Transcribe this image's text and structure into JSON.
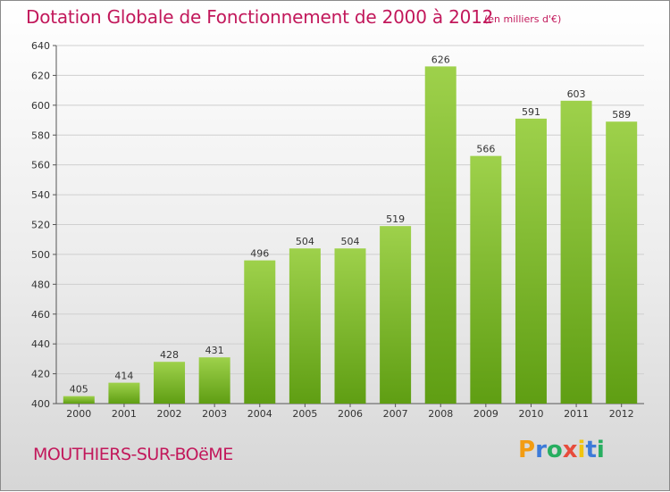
{
  "title": "Dotation Globale de Fonctionnement de 2000 à 2012",
  "unit_note": "(en milliers d'€)",
  "commune": "MOUTHIERS-SUR-BOëME",
  "brand": {
    "letters": [
      "P",
      "r",
      "o",
      "x",
      "i",
      "t",
      "i"
    ],
    "colors": [
      "#f39c12",
      "#3d7bd9",
      "#27ae60",
      "#e74c3c",
      "#f1c40f",
      "#3d7bd9",
      "#27ae60"
    ]
  },
  "colors": {
    "bar_light": "#9ed14b",
    "bar_dark": "#5f9e13",
    "accent": "#c2185b",
    "grid": "#cfcfcf"
  },
  "chart_data": {
    "type": "bar",
    "categories": [
      "2000",
      "2001",
      "2002",
      "2003",
      "2004",
      "2005",
      "2006",
      "2007",
      "2008",
      "2009",
      "2010",
      "2011",
      "2012"
    ],
    "values": [
      405,
      414,
      428,
      431,
      496,
      504,
      504,
      519,
      626,
      566,
      591,
      603,
      589
    ],
    "title": "Dotation Globale de Fonctionnement de 2000 à 2012",
    "xlabel": "",
    "ylabel": "",
    "ylim": [
      400,
      640
    ],
    "yticks": [
      400,
      420,
      440,
      460,
      480,
      500,
      520,
      540,
      560,
      580,
      600,
      620,
      640
    ],
    "grid": true
  }
}
